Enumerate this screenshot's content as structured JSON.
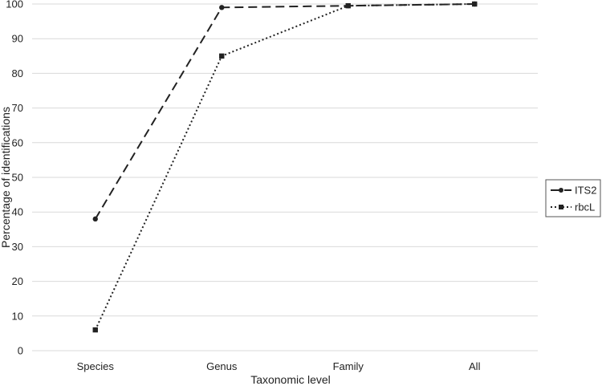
{
  "chart_data": {
    "type": "line",
    "title": "",
    "xlabel": "Taxonomic level",
    "ylabel": "Percentage of identifications",
    "categories": [
      "Species",
      "Genus",
      "Family",
      "All"
    ],
    "ylim": [
      0,
      100
    ],
    "yticks": [
      0,
      10,
      20,
      30,
      40,
      50,
      60,
      70,
      80,
      90,
      100
    ],
    "grid": true,
    "legend_position": "right",
    "series": [
      {
        "name": "ITS2",
        "values": [
          38,
          99,
          99.5,
          100
        ],
        "style": "dashed",
        "marker": "circle",
        "color": "#222222"
      },
      {
        "name": "rbcL",
        "values": [
          6,
          85,
          99.5,
          100
        ],
        "style": "dotted",
        "marker": "square",
        "color": "#222222"
      }
    ]
  }
}
